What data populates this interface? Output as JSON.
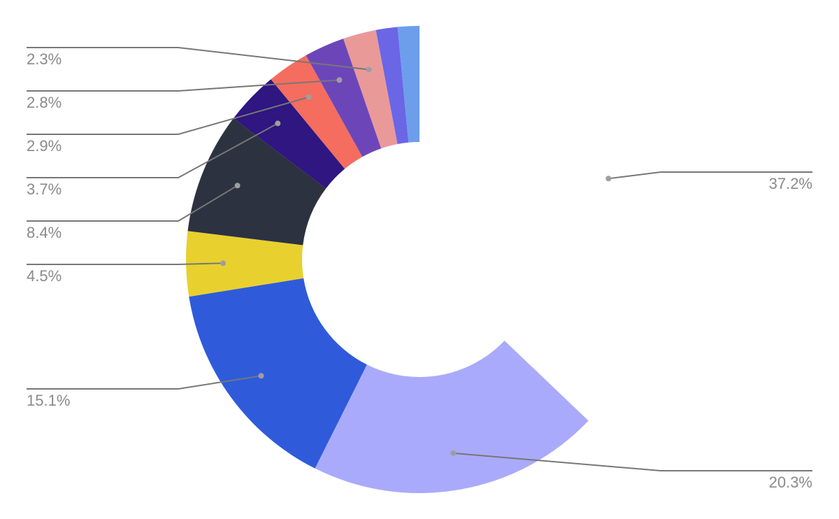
{
  "chart_data": {
    "type": "pie",
    "donut": true,
    "start_angle_deg": 0,
    "direction": "clockwise-from-top",
    "slices": [
      {
        "value": 37.2,
        "label": "37.2%",
        "color": "#ffffff"
      },
      {
        "value": 20.3,
        "label": "20.3%",
        "color": "#aaaafc"
      },
      {
        "value": 15.1,
        "label": "15.1%",
        "color": "#2f5bdb"
      },
      {
        "value": 4.5,
        "label": "4.5%",
        "color": "#e8d12e"
      },
      {
        "value": 8.4,
        "label": "8.4%",
        "color": "#2c3240"
      },
      {
        "value": 3.7,
        "label": "3.7%",
        "color": "#2f1680"
      },
      {
        "value": 2.9,
        "label": "2.9%",
        "color": "#f46d5f"
      },
      {
        "value": 2.8,
        "label": "2.8%",
        "color": "#6c46b9"
      },
      {
        "value": 2.3,
        "label": "2.3%",
        "color": "#ea9999"
      },
      {
        "value": 1.5,
        "label": "",
        "color": "#6a66e6"
      },
      {
        "value": 1.5,
        "label": "",
        "color": "#6d9eeb"
      }
    ],
    "title": "",
    "legend": "none",
    "label_style": "percent outside with leader lines"
  }
}
